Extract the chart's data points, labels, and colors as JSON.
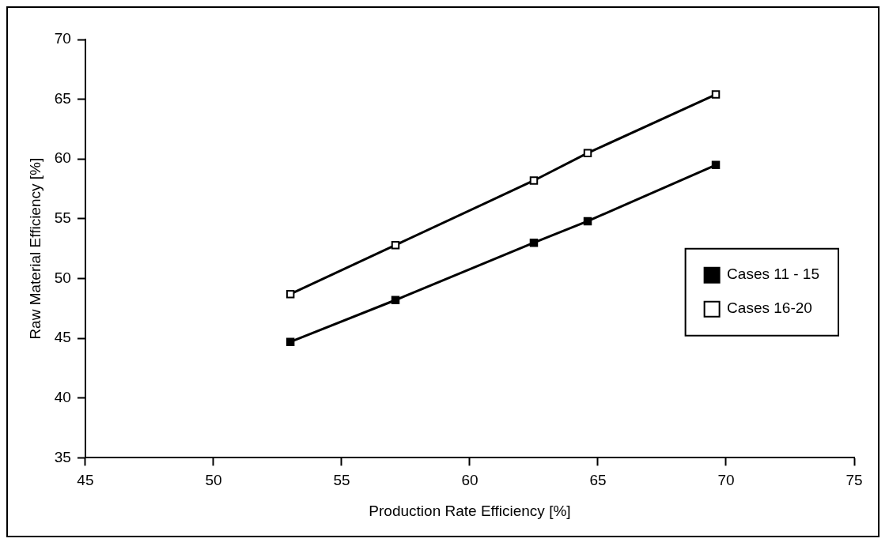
{
  "chart_data": {
    "type": "line",
    "xlabel": "Production Rate Efficiency [%]",
    "ylabel": "Raw Material Efficiency [%]",
    "xlim": [
      45,
      75
    ],
    "xticks": [
      45,
      50,
      55,
      60,
      65,
      70,
      75
    ],
    "ylim": [
      35,
      70
    ],
    "yticks": [
      35,
      40,
      45,
      50,
      55,
      60,
      65,
      70
    ],
    "grid": false,
    "legend": "right",
    "marker": "square",
    "line_style": "solid",
    "series": [
      {
        "name": "Cases 11 - 15",
        "color": "#000000",
        "x": [
          53.0,
          57.1,
          62.5,
          64.6,
          69.6
        ],
        "values": [
          44.7,
          48.2,
          53.0,
          54.8,
          59.5
        ]
      },
      {
        "name": "Cases 16-20",
        "color": "#000000",
        "x": [
          53.0,
          57.1,
          62.5,
          64.6,
          69.6
        ],
        "values": [
          48.7,
          52.8,
          58.2,
          60.5,
          65.4
        ]
      }
    ]
  }
}
